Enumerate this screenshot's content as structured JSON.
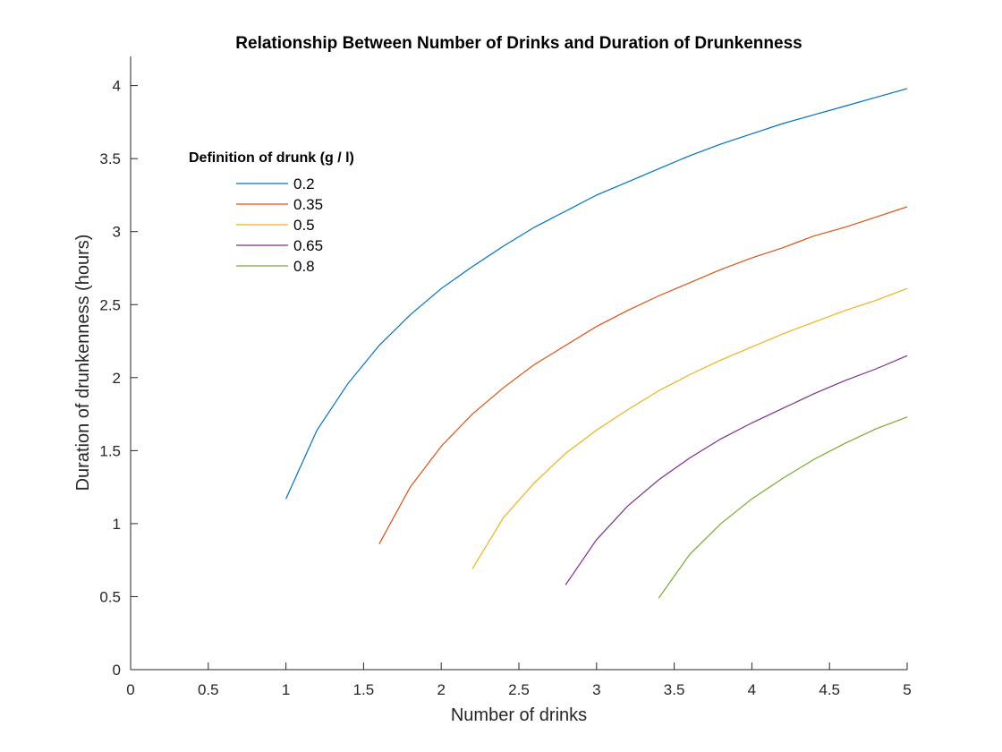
{
  "chart_data": {
    "type": "line",
    "title": "Relationship Between Number of Drinks and Duration of Drunkenness",
    "xlabel": "Number of drinks",
    "ylabel": "Duration of drunkenness (hours)",
    "xlim": [
      0,
      5
    ],
    "ylim": [
      0,
      4.2
    ],
    "xticks": [
      0,
      0.5,
      1,
      1.5,
      2,
      2.5,
      3,
      3.5,
      4,
      4.5,
      5
    ],
    "yticks": [
      0,
      0.5,
      1,
      1.5,
      2,
      2.5,
      3,
      3.5,
      4
    ],
    "xtick_labels": [
      "0",
      "0.5",
      "1",
      "1.5",
      "2",
      "2.5",
      "3",
      "3.5",
      "4",
      "4.5",
      "5"
    ],
    "ytick_labels": [
      "0",
      "0.5",
      "1",
      "1.5",
      "2",
      "2.5",
      "3",
      "3.5",
      "4"
    ],
    "grid": false,
    "legend": {
      "title": "Definition of drunk (g / l)",
      "placement": "top-left"
    },
    "series": [
      {
        "name": "0.2",
        "color": "#0072BD",
        "x": [
          1.0,
          1.2,
          1.4,
          1.6,
          1.8,
          2.0,
          2.2,
          2.4,
          2.6,
          2.8,
          3.0,
          3.2,
          3.4,
          3.6,
          3.8,
          4.0,
          4.2,
          4.4,
          4.6,
          4.8,
          5.0
        ],
        "y": [
          1.17,
          1.64,
          1.96,
          2.22,
          2.43,
          2.61,
          2.76,
          2.9,
          3.03,
          3.14,
          3.25,
          3.34,
          3.43,
          3.52,
          3.6,
          3.67,
          3.74,
          3.8,
          3.86,
          3.92,
          3.98
        ]
      },
      {
        "name": "0.35",
        "color": "#D95319",
        "x": [
          1.6,
          1.8,
          2.0,
          2.2,
          2.4,
          2.6,
          2.8,
          3.0,
          3.2,
          3.4,
          3.6,
          3.8,
          4.0,
          4.2,
          4.4,
          4.6,
          4.8,
          5.0
        ],
        "y": [
          0.86,
          1.25,
          1.53,
          1.75,
          1.93,
          2.09,
          2.22,
          2.35,
          2.46,
          2.56,
          2.65,
          2.74,
          2.82,
          2.89,
          2.97,
          3.03,
          3.1,
          3.17
        ]
      },
      {
        "name": "0.5",
        "color": "#EDB120",
        "x": [
          2.2,
          2.4,
          2.6,
          2.8,
          3.0,
          3.2,
          3.4,
          3.6,
          3.8,
          4.0,
          4.2,
          4.4,
          4.6,
          4.8,
          5.0
        ],
        "y": [
          0.69,
          1.04,
          1.28,
          1.48,
          1.64,
          1.78,
          1.91,
          2.02,
          2.12,
          2.21,
          2.3,
          2.38,
          2.46,
          2.53,
          2.61
        ]
      },
      {
        "name": "0.65",
        "color": "#7E2F8E",
        "x": [
          2.8,
          3.0,
          3.2,
          3.4,
          3.6,
          3.8,
          4.0,
          4.2,
          4.4,
          4.6,
          4.8,
          5.0
        ],
        "y": [
          0.58,
          0.89,
          1.12,
          1.3,
          1.45,
          1.58,
          1.69,
          1.79,
          1.89,
          1.98,
          2.06,
          2.15
        ]
      },
      {
        "name": "0.8",
        "color": "#77AC30",
        "x": [
          3.4,
          3.6,
          3.8,
          4.0,
          4.2,
          4.4,
          4.6,
          4.8,
          5.0
        ],
        "y": [
          0.49,
          0.79,
          1.0,
          1.17,
          1.31,
          1.44,
          1.55,
          1.65,
          1.73
        ]
      }
    ]
  }
}
